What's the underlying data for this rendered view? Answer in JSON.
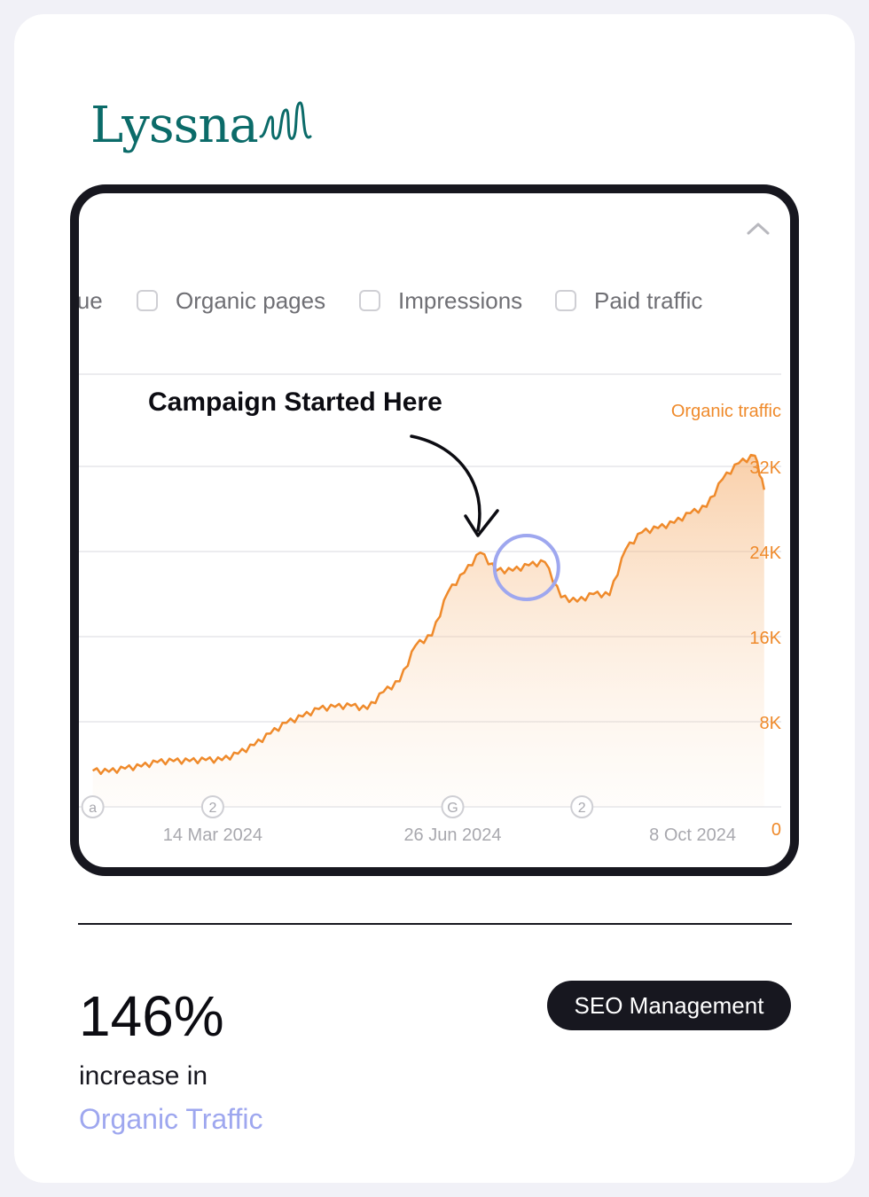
{
  "brand": {
    "name": "Lyssna",
    "color": "#0b6b69"
  },
  "filters": [
    {
      "label": "lue",
      "checked": null
    },
    {
      "label": "Organic pages",
      "checked": false
    },
    {
      "label": "Impressions",
      "checked": false
    },
    {
      "label": "Paid traffic",
      "checked": false
    }
  ],
  "annotation": {
    "text": "Campaign Started Here"
  },
  "chart_data": {
    "type": "area",
    "series": [
      {
        "name": "Organic traffic",
        "color": "#ef8a2b",
        "points": [
          [
            "2024-01-22",
            3400
          ],
          [
            "2024-01-29",
            3300
          ],
          [
            "2024-02-05",
            3600
          ],
          [
            "2024-02-12",
            3800
          ],
          [
            "2024-02-19",
            4200
          ],
          [
            "2024-02-26",
            4300
          ],
          [
            "2024-03-04",
            4300
          ],
          [
            "2024-03-11",
            4400
          ],
          [
            "2024-03-18",
            4400
          ],
          [
            "2024-03-25",
            5000
          ],
          [
            "2024-04-01",
            5800
          ],
          [
            "2024-04-08",
            6900
          ],
          [
            "2024-04-15",
            7900
          ],
          [
            "2024-04-22",
            8500
          ],
          [
            "2024-04-29",
            9200
          ],
          [
            "2024-05-06",
            9400
          ],
          [
            "2024-05-13",
            9500
          ],
          [
            "2024-05-20",
            9200
          ],
          [
            "2024-05-27",
            10800
          ],
          [
            "2024-06-03",
            11800
          ],
          [
            "2024-06-10",
            15200
          ],
          [
            "2024-06-17",
            16100
          ],
          [
            "2024-06-24",
            20200
          ],
          [
            "2024-07-01",
            22000
          ],
          [
            "2024-07-08",
            23900
          ],
          [
            "2024-07-15",
            22200
          ],
          [
            "2024-07-22",
            22200
          ],
          [
            "2024-07-29",
            22700
          ],
          [
            "2024-08-05",
            23000
          ],
          [
            "2024-08-12",
            19700
          ],
          [
            "2024-08-19",
            19300
          ],
          [
            "2024-08-26",
            20000
          ],
          [
            "2024-09-02",
            19900
          ],
          [
            "2024-09-09",
            24200
          ],
          [
            "2024-09-16",
            25800
          ],
          [
            "2024-09-23",
            26200
          ],
          [
            "2024-09-30",
            26700
          ],
          [
            "2024-10-07",
            27600
          ],
          [
            "2024-10-14",
            28200
          ],
          [
            "2024-10-21",
            30800
          ],
          [
            "2024-10-28",
            32300
          ],
          [
            "2024-11-04",
            33000
          ],
          [
            "2024-11-08",
            29800
          ]
        ]
      }
    ],
    "x_axis": {
      "labels": [
        "14 Mar 2024",
        "26 Jun 2024",
        "8 Oct 2024"
      ]
    },
    "y_axis": {
      "title": "Organic traffic",
      "labels": [
        "32K",
        "24K",
        "16K",
        "8K",
        "0"
      ],
      "ylim": [
        0,
        32000
      ],
      "position": "right"
    },
    "grid": true,
    "event_markers": [
      {
        "label": "a",
        "date": "2024-01-22"
      },
      {
        "label": "2",
        "date": "2024-03-14"
      },
      {
        "label": "G",
        "date": "2024-06-26"
      },
      {
        "label": "2",
        "date": "2024-08-21"
      }
    ],
    "highlight": {
      "date_range": [
        "2024-07-10",
        "2024-08-15"
      ]
    }
  },
  "stat": {
    "value": "146%",
    "label": "increase in",
    "highlight": "Organic Traffic",
    "highlight_color": "#9ea7ef"
  },
  "badge": {
    "label": "SEO Management"
  }
}
